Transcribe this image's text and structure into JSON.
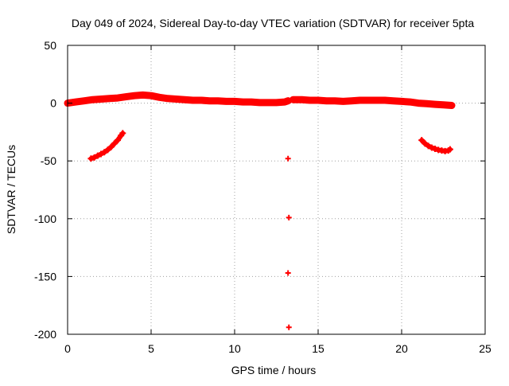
{
  "chart_data": {
    "type": "scatter",
    "title": "Day 049 of 2024, Sidereal Day-to-day VTEC variation (SDTVAR) for receiver 5pta",
    "xlabel": "GPS time / hours",
    "ylabel": "SDTVAR / TECUs",
    "xlim": [
      0,
      25
    ],
    "ylim": [
      -200,
      50
    ],
    "xticks": [
      0,
      5,
      10,
      15,
      20,
      25
    ],
    "yticks": [
      50,
      0,
      -50,
      -100,
      -150,
      -200
    ],
    "xtick_labels": [
      "0",
      "5",
      "10",
      "15",
      "20",
      "25"
    ],
    "ytick_labels": [
      "50",
      "0",
      "-50",
      "-100",
      "-150",
      "-200"
    ],
    "grid": true,
    "legend": "none",
    "series_color": "#ff0000",
    "series": [
      {
        "name": "main-band",
        "x": [
          0,
          0.5,
          1,
          1.5,
          2,
          2.5,
          3,
          3.5,
          4,
          4.5,
          5,
          5.5,
          6,
          6.5,
          7,
          7.5,
          8,
          8.5,
          9,
          9.5,
          10,
          10.5,
          11,
          11.5,
          12,
          12.5,
          13,
          13.2
        ],
        "y": [
          0,
          1,
          2,
          3,
          3.5,
          4,
          4.5,
          5.5,
          6.5,
          7,
          6.5,
          5,
          4,
          3.5,
          3,
          2.5,
          2.5,
          2,
          2,
          1.5,
          1.5,
          1,
          1,
          0.5,
          0.5,
          0.5,
          1,
          2
        ]
      },
      {
        "name": "band-after-gap",
        "x": [
          13.5,
          14,
          14.5,
          15,
          15.5,
          16,
          16.5,
          17,
          17.5,
          18,
          18.5,
          19,
          19.5,
          20,
          20.5,
          21,
          21.5,
          22,
          22.5,
          23
        ],
        "y": [
          3,
          3,
          2.5,
          2.5,
          2,
          2,
          1.5,
          2,
          2.5,
          2.5,
          2.5,
          2.5,
          2,
          1.5,
          1,
          0,
          -0.5,
          -1,
          -1.5,
          -2
        ]
      },
      {
        "name": "early-arc",
        "x": [
          1.4,
          1.6,
          1.8,
          2.0,
          2.2,
          2.4,
          2.6,
          2.8,
          3.0,
          3.2,
          3.3
        ],
        "y": [
          -48,
          -47,
          -45.5,
          -44,
          -42.5,
          -40.5,
          -38,
          -35,
          -32,
          -28,
          -26
        ]
      },
      {
        "name": "late-arc",
        "x": [
          21.2,
          21.4,
          21.6,
          21.8,
          22.0,
          22.2,
          22.4,
          22.6,
          22.8,
          22.9
        ],
        "y": [
          -32,
          -35,
          -37,
          -38.5,
          -39.5,
          -40.5,
          -41,
          -41.5,
          -41,
          -40
        ]
      },
      {
        "name": "isolated-points",
        "x": [
          13.2,
          13.25,
          13.2,
          13.25
        ],
        "y": [
          -48,
          -99,
          -147,
          -194
        ]
      }
    ]
  }
}
